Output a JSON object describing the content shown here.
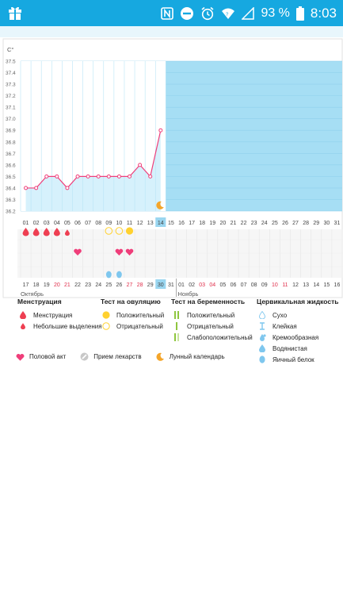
{
  "status_bar": {
    "battery_percent": "93 %",
    "time": "8:03",
    "icons": [
      "gift-icon",
      "nfc-icon",
      "do-not-disturb-icon",
      "alarm-icon",
      "wifi-icon",
      "signal-icon",
      "battery-icon"
    ]
  },
  "chart_data": {
    "type": "line",
    "ylabel": "C°",
    "ylim": [
      36.2,
      37.5
    ],
    "yticks": [
      "37.5",
      "37.4",
      "37.3",
      "37.2",
      "37.1",
      "37.0",
      "36.9",
      "36.8",
      "36.7",
      "36.6",
      "36.5",
      "36.4",
      "36.3",
      "36.2"
    ],
    "cycle_days": [
      "01",
      "02",
      "03",
      "04",
      "05",
      "06",
      "07",
      "08",
      "09",
      "10",
      "11",
      "12",
      "13",
      "14",
      "15",
      "16",
      "17",
      "18",
      "19",
      "20",
      "21",
      "22",
      "23",
      "24",
      "25",
      "26",
      "27",
      "28",
      "29",
      "30",
      "31"
    ],
    "current_cycle_day": "14",
    "temperatures": [
      36.4,
      36.4,
      36.5,
      36.5,
      36.4,
      36.5,
      36.5,
      36.5,
      36.5,
      36.5,
      36.5,
      36.6,
      36.5,
      36.9
    ],
    "menstruation": {
      "heavy_days": [
        1,
        2,
        3,
        4
      ],
      "light_days": [
        5
      ]
    },
    "ovulation_test": {
      "negative_days": [
        9,
        10
      ],
      "positive_days": [
        11
      ]
    },
    "intercourse_days": [
      6,
      10,
      11
    ],
    "cervical_fluid_days": [
      9,
      10
    ],
    "moon_day": 14,
    "calendar_dates": [
      "17",
      "18",
      "19",
      "20",
      "21",
      "22",
      "23",
      "24",
      "25",
      "26",
      "27",
      "28",
      "29",
      "30",
      "31",
      "01",
      "02",
      "03",
      "04",
      "05",
      "06",
      "07",
      "08",
      "09",
      "10",
      "11",
      "12",
      "13",
      "14",
      "15",
      "16"
    ],
    "red_date_indices": [
      3,
      4,
      10,
      11,
      17,
      18,
      24,
      25
    ],
    "today_index": 13,
    "month_labels": [
      "Октябрь",
      "Ноябрь"
    ],
    "colors": {
      "plot_background": "#a6def4",
      "past_fill": "#d6f1fc",
      "line": "#ef3e7a",
      "menstruation": "#ee3f52",
      "ovulation": "#ffd12f",
      "heart": "#ef3e7a",
      "fluid": "#7fc7ee",
      "moon": "#f4a52a",
      "pregnancy": "#8fc63f"
    }
  },
  "legend": {
    "menstruation": {
      "title": "Менструация",
      "items": [
        "Менструация",
        "Небольшие выделения"
      ]
    },
    "ovulation": {
      "title": "Тест на овуляцию",
      "items": [
        "Положительный",
        "Отрицательный"
      ]
    },
    "pregnancy": {
      "title": "Тест на беременность",
      "items": [
        "Положительный",
        "Отрицательный",
        "Слабоположительный"
      ]
    },
    "cervical": {
      "title": "Цервикальная жидкость",
      "items": [
        "Сухо",
        "Клейкая",
        "Кремообразная",
        "Водянистая",
        "Яичный белок"
      ]
    },
    "bottom": [
      "Половой акт",
      "Прием лекарств",
      "Лунный календарь"
    ]
  }
}
